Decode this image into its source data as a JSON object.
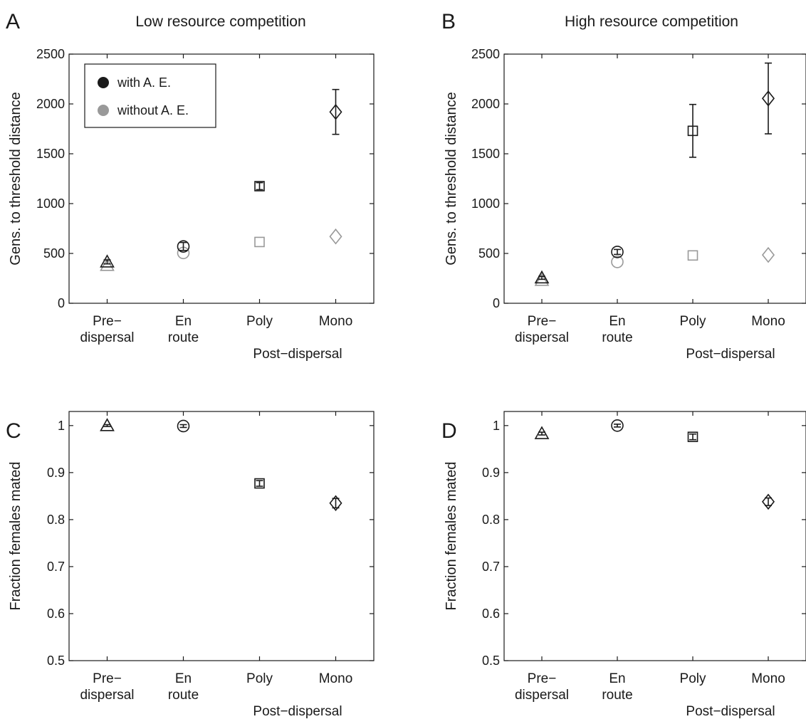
{
  "colors": {
    "with": "#1a1a1a",
    "without": "#999999",
    "axis": "#1a1a1a"
  },
  "categories": [
    "Pre− dispersal",
    "En route",
    "Poly",
    "Mono"
  ],
  "category_lines": [
    [
      "Pre−",
      "dispersal"
    ],
    [
      "En",
      "route"
    ],
    [
      "Poly"
    ],
    [
      "Mono"
    ]
  ],
  "group_label": "Post−dispersal",
  "markers": [
    "triangle",
    "circle",
    "square",
    "diamond"
  ],
  "legend": {
    "with_label": "with A. E.",
    "without_label": "without A. E."
  },
  "chart_data": [
    {
      "panel": "A",
      "type": "scatter",
      "title": "Low resource competition",
      "ylabel": "Gens. to threshold distance",
      "ylim": [
        0,
        2500
      ],
      "yticks": [
        0,
        500,
        1000,
        1500,
        2000,
        2500
      ],
      "yticklabels": [
        "0",
        "500",
        "1000",
        "1500",
        "2000",
        "2500"
      ],
      "series": [
        {
          "name": "with A. E.",
          "values": [
            415,
            570,
            1175,
            1920
          ],
          "errors": [
            20,
            40,
            35,
            225
          ]
        },
        {
          "name": "without A. E.",
          "values": [
            380,
            505,
            615,
            670
          ],
          "errors": [
            0,
            0,
            0,
            0
          ]
        }
      ]
    },
    {
      "panel": "B",
      "type": "scatter",
      "title": "High resource competition",
      "ylabel": "Gens. to threshold distance",
      "ylim": [
        0,
        2500
      ],
      "yticks": [
        0,
        500,
        1000,
        1500,
        2000,
        2500
      ],
      "yticklabels": [
        "0",
        "500",
        "1000",
        "1500",
        "2000",
        "2500"
      ],
      "series": [
        {
          "name": "with A. E.",
          "values": [
            255,
            515,
            1730,
            2055
          ],
          "errors": [
            15,
            25,
            265,
            355
          ]
        },
        {
          "name": "without A. E.",
          "values": [
            230,
            415,
            480,
            485
          ],
          "errors": [
            0,
            0,
            0,
            0
          ]
        }
      ]
    },
    {
      "panel": "C",
      "type": "scatter",
      "title": "",
      "ylabel": "Fraction females mated",
      "ylim": [
        0.5,
        1.03
      ],
      "yticks": [
        0.5,
        0.6,
        0.7,
        0.8,
        0.9,
        1
      ],
      "yticklabels": [
        "0.5",
        "0.6",
        "0.7",
        "0.8",
        "0.9",
        "1"
      ],
      "series": [
        {
          "name": "with A. E.",
          "values": [
            1.0,
            0.999,
            0.877,
            0.835
          ],
          "errors": [
            0.002,
            0.003,
            0.006,
            0.01
          ]
        }
      ]
    },
    {
      "panel": "D",
      "type": "scatter",
      "title": "",
      "ylabel": "Fraction females mated",
      "ylim": [
        0.5,
        1.03
      ],
      "yticks": [
        0.5,
        0.6,
        0.7,
        0.8,
        0.9,
        1
      ],
      "yticklabels": [
        "0.5",
        "0.6",
        "0.7",
        "0.8",
        "0.9",
        "1"
      ],
      "series": [
        {
          "name": "with A. E.",
          "values": [
            0.983,
            1.0,
            0.976,
            0.838
          ],
          "errors": [
            0.003,
            0.003,
            0.006,
            0.008
          ]
        }
      ]
    }
  ]
}
